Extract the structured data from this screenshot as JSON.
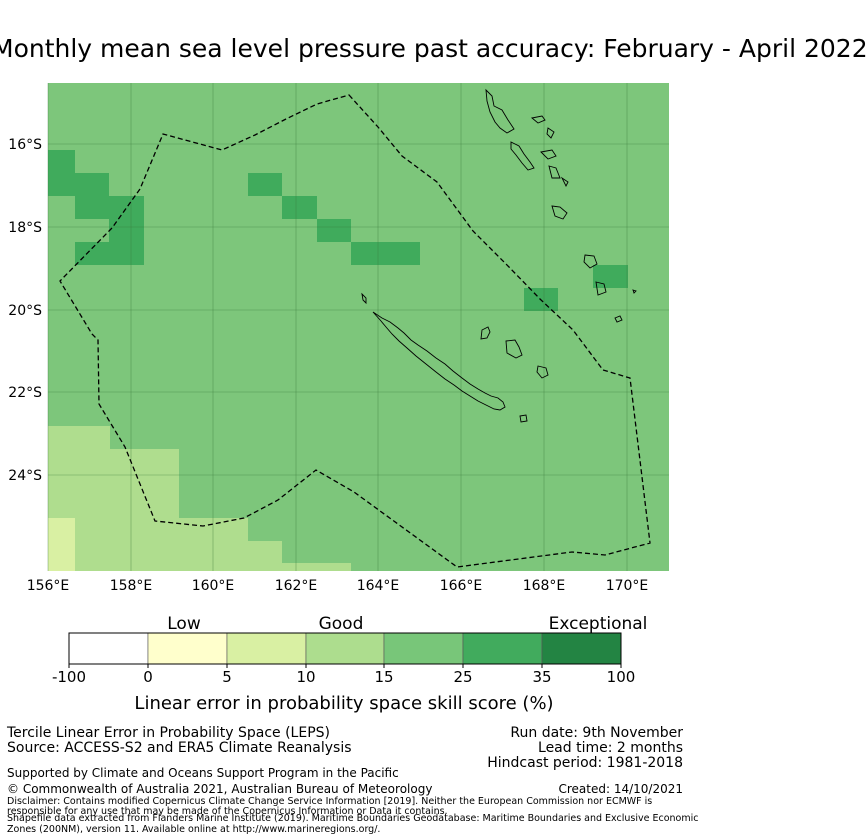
{
  "title": "Monthly mean sea level pressure past accuracy: February - April 2022",
  "map": {
    "lon_labels": [
      "156°E",
      "158°E",
      "160°E",
      "162°E",
      "164°E",
      "166°E",
      "168°E",
      "170°E"
    ],
    "lat_labels": [
      "16°S",
      "18°S",
      "20°S",
      "22°S",
      "24°S"
    ],
    "colors": {
      "base": "#7dc67b",
      "dark": "#40ab5c",
      "light": "#afdd8e",
      "lighter": "#d9f0a3",
      "grid": "#3b7a3b"
    }
  },
  "colorbar": {
    "category_labels": [
      "Low",
      "Good",
      "Exceptional"
    ],
    "tick_labels": [
      "-100",
      "0",
      "5",
      "10",
      "15",
      "25",
      "35",
      "100"
    ],
    "colors": [
      "#ffffff",
      "#ffffcc",
      "#d9f0a3",
      "#addd8e",
      "#78c679",
      "#41ab5d",
      "#238443"
    ],
    "axis_label": "Linear error in probability space skill score (%)"
  },
  "info": {
    "product": "Tercile Linear Error in Probability Space (LEPS)",
    "source": "Source: ACCESS-S2 and ERA5 Climate Reanalysis",
    "run_date": "Run date: 9th November",
    "lead_time": "Lead time: 2 months",
    "hindcast": "Hindcast period: 1981-2018",
    "supported": "Supported by Climate and Oceans Support Program in the Pacific",
    "copyright": "© Commonwealth of Australia 2021, Australian Bureau of Meteorology",
    "created": "Created: 14/10/2021",
    "disclaimer1": "Disclaimer: Contains modified Copernicus Climate Change Service Information [2019]. Neither the European Commission nor ECMWF is",
    "disclaimer2": "responsible for any use that may be made of the Copernicus Information or Data it contains.",
    "shapefile1": "Shapefile data extracted from Flanders Marine Institute (2019). Maritime Boundaries Geodatabase: Maritime Boundaries and Exclusive Economic",
    "shapefile2": "Zones (200NM), version 11. Available online at http://www.marineregions.org/."
  }
}
